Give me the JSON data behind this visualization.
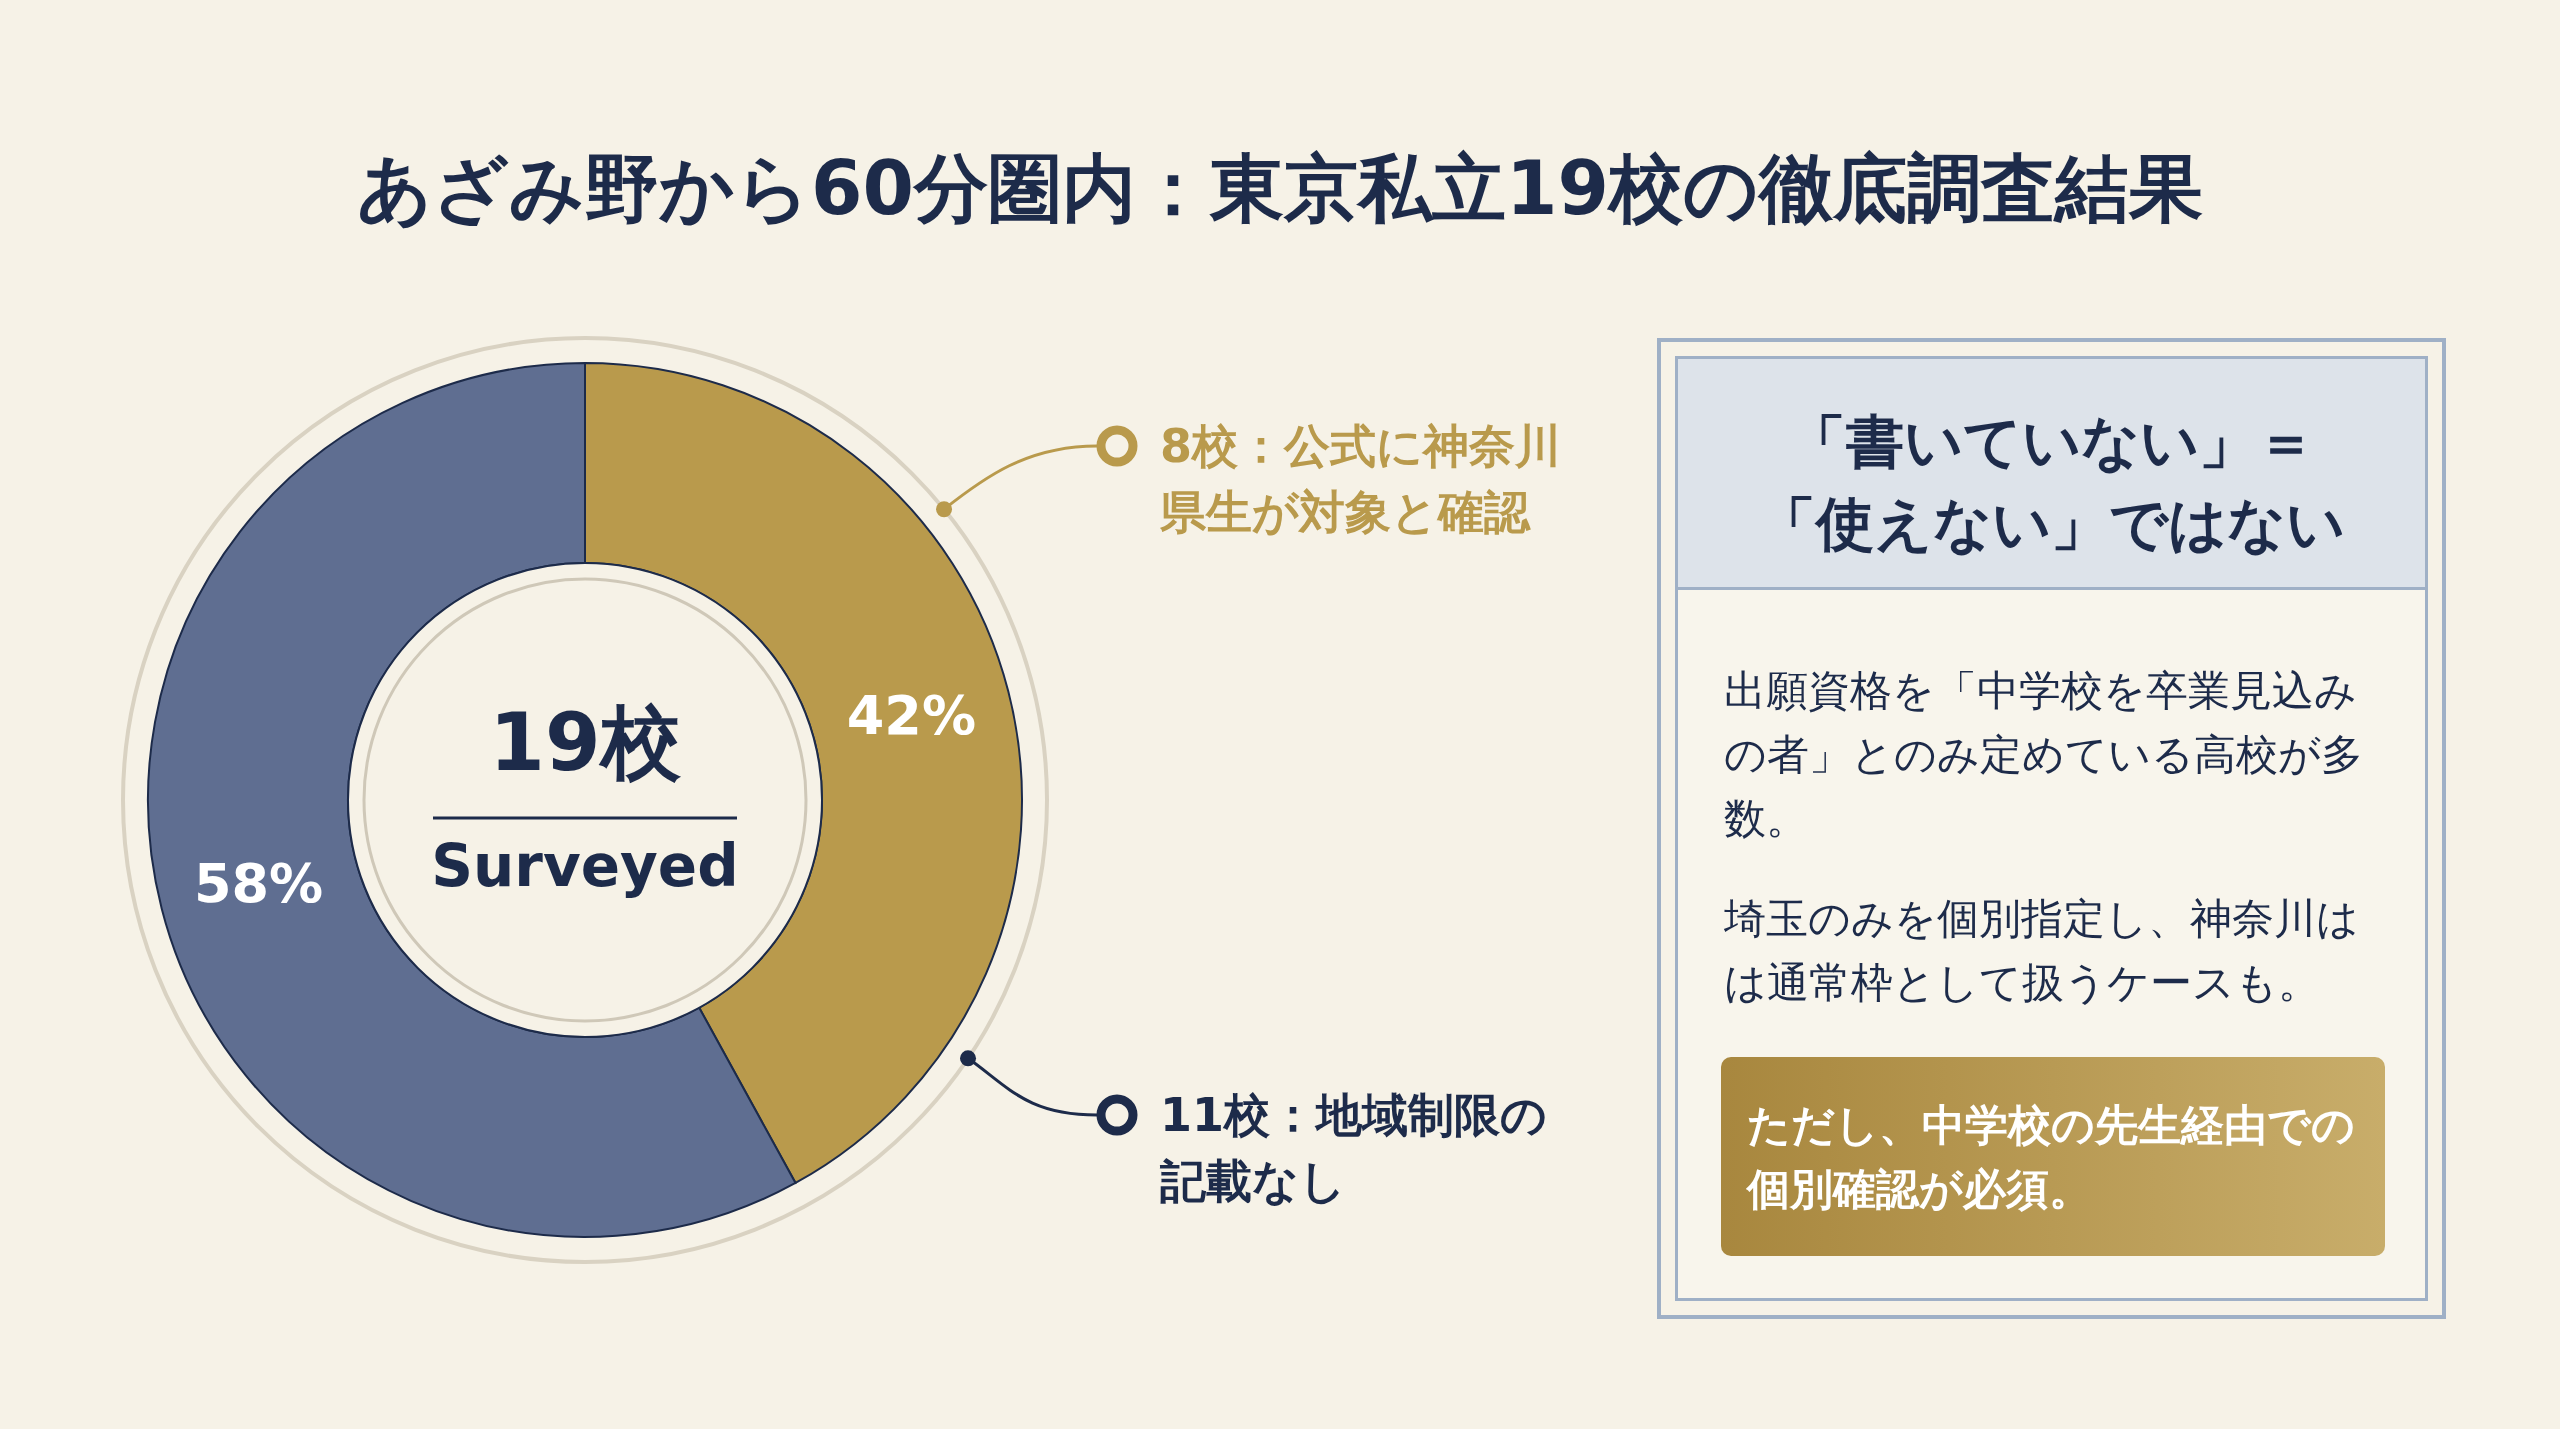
{
  "chart_data": [
    {
      "type": "donut",
      "title": "あざみ野から60分圏内：東京私立19校の徹底調査結果",
      "categories": [
        "8校：公式に神奈川県生が対象と確認",
        "11校：地域制限の記載なし"
      ],
      "values": [
        42,
        58
      ],
      "colors": [
        "#b99a4c",
        "#5f6e91"
      ],
      "value_labels": [
        "42%",
        "58%"
      ],
      "legend": "right",
      "annotations": [
        "19校",
        "Surveyed"
      ]
    },
    {
      "type": "other",
      "title": "「書いていない」＝「使えない」ではない",
      "annotations": [
        "出願資格を「中学校を卒業見込みの者」とのみ定めている高校が多数。",
        "埼玉のみを個別指定し、神奈川はは通常枠として扱うケースも。",
        "ただし、中学校の先生経由での個別確認が必須。"
      ]
    }
  ]
}
